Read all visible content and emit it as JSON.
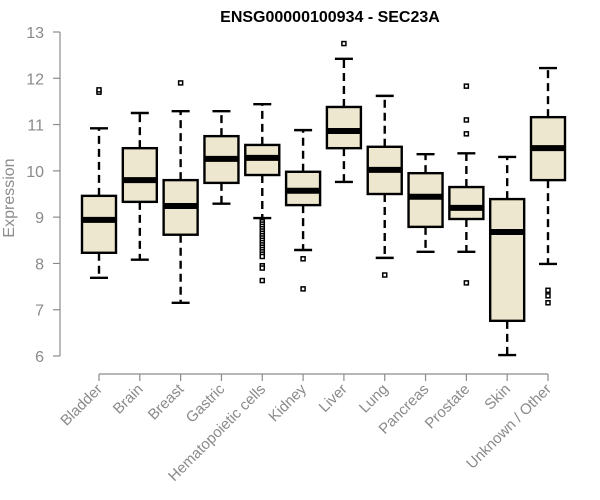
{
  "chart_data": {
    "type": "box",
    "title": "ENSG00000100934 - SEC23A",
    "xlabel": "",
    "ylabel": "Expression",
    "ylim": [
      6,
      13
    ],
    "yticks": [
      6,
      7,
      8,
      9,
      10,
      11,
      12,
      13
    ],
    "grid": false,
    "legend": "none",
    "colors": {
      "box_fill": "#ede7cf",
      "box_stroke": "#000000",
      "axis": "#8c8c8c",
      "tick_label": "#8a8a8a"
    },
    "categories": [
      "Bladder",
      "Brain",
      "Breast",
      "Gastric",
      "Hematopoietic cells",
      "Kidney",
      "Liver",
      "Lung",
      "Pancreas",
      "Prostate",
      "Skin",
      "Unknown / Other"
    ],
    "boxes": [
      {
        "name": "Bladder",
        "whisker_low": 7.69,
        "q1": 8.23,
        "median": 8.94,
        "q3": 9.46,
        "whisker_high": 10.92,
        "outliers": [
          11.7,
          11.75
        ]
      },
      {
        "name": "Brain",
        "whisker_low": 8.08,
        "q1": 9.33,
        "median": 9.8,
        "q3": 10.49,
        "whisker_high": 11.25,
        "outliers": []
      },
      {
        "name": "Breast",
        "whisker_low": 7.15,
        "q1": 8.62,
        "median": 9.24,
        "q3": 9.8,
        "whisker_high": 11.29,
        "outliers": [
          11.9
        ]
      },
      {
        "name": "Gastric",
        "whisker_low": 9.29,
        "q1": 9.74,
        "median": 10.26,
        "q3": 10.75,
        "whisker_high": 11.29,
        "outliers": []
      },
      {
        "name": "Hematopoietic cells",
        "whisker_low": 8.98,
        "q1": 9.91,
        "median": 10.28,
        "q3": 10.56,
        "whisker_high": 11.44,
        "outliers": [
          8.9,
          8.85,
          8.8,
          8.75,
          8.7,
          8.65,
          8.6,
          8.55,
          8.5,
          8.45,
          8.4,
          8.35,
          8.3,
          8.25,
          8.2,
          8.15,
          7.95,
          7.9,
          7.63
        ]
      },
      {
        "name": "Kidney",
        "whisker_low": 8.29,
        "q1": 9.26,
        "median": 9.57,
        "q3": 9.98,
        "whisker_high": 10.88,
        "outliers": [
          8.1,
          7.45
        ]
      },
      {
        "name": "Liver",
        "whisker_low": 9.76,
        "q1": 10.49,
        "median": 10.86,
        "q3": 11.38,
        "whisker_high": 12.42,
        "outliers": [
          12.75
        ]
      },
      {
        "name": "Lung",
        "whisker_low": 8.12,
        "q1": 9.5,
        "median": 10.02,
        "q3": 10.52,
        "whisker_high": 11.62,
        "outliers": [
          7.75
        ]
      },
      {
        "name": "Pancreas",
        "whisker_low": 8.25,
        "q1": 8.79,
        "median": 9.44,
        "q3": 9.95,
        "whisker_high": 10.36,
        "outliers": []
      },
      {
        "name": "Prostate",
        "whisker_low": 8.25,
        "q1": 8.96,
        "median": 9.2,
        "q3": 9.65,
        "whisker_high": 10.38,
        "outliers": [
          11.83,
          11.1,
          10.8,
          7.58
        ]
      },
      {
        "name": "Skin",
        "whisker_low": 6.02,
        "q1": 6.76,
        "median": 8.68,
        "q3": 9.39,
        "whisker_high": 10.3,
        "outliers": []
      },
      {
        "name": "Unknown / Other",
        "whisker_low": 7.99,
        "q1": 9.8,
        "median": 10.49,
        "q3": 11.16,
        "whisker_high": 12.22,
        "outliers": [
          7.42,
          7.3,
          7.15
        ]
      }
    ]
  }
}
